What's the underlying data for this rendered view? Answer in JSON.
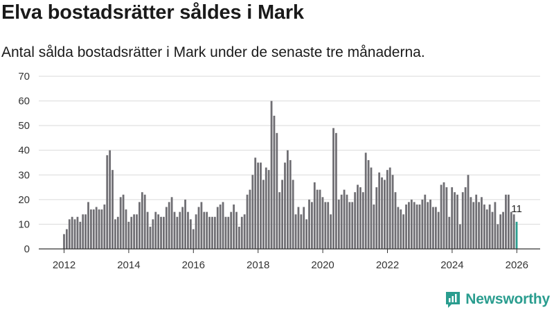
{
  "chart_data": {
    "type": "bar",
    "title": "Elva bostadsrätter såldes i Mark",
    "subtitle": "Antal sålda bostadsrätter i Mark under de senaste tre månaderna.",
    "xlabel": "",
    "ylabel": "",
    "ylim": [
      0,
      70
    ],
    "y_ticks": [
      0,
      10,
      20,
      30,
      40,
      50,
      60,
      70
    ],
    "x_ticks": [
      2012,
      2014,
      2016,
      2018,
      2020,
      2022,
      2024,
      2026
    ],
    "x_start": 2012.0,
    "x_step": 0.0833,
    "gridlines": true,
    "values": [
      6,
      8,
      12,
      13,
      12,
      13,
      11,
      14,
      14,
      19,
      16,
      16,
      17,
      16,
      16,
      18,
      38,
      40,
      32,
      12,
      13,
      21,
      22,
      16,
      11,
      13,
      14,
      14,
      19,
      23,
      22,
      15,
      9,
      12,
      15,
      14,
      13,
      13,
      17,
      19,
      21,
      15,
      13,
      15,
      17,
      20,
      15,
      12,
      8,
      14,
      17,
      19,
      15,
      15,
      13,
      13,
      13,
      17,
      18,
      19,
      13,
      13,
      15,
      18,
      15,
      9,
      13,
      14,
      22,
      24,
      30,
      37,
      35,
      35,
      28,
      33,
      32,
      60,
      54,
      47,
      23,
      28,
      35,
      40,
      36,
      28,
      14,
      17,
      14,
      17,
      12,
      20,
      19,
      27,
      24,
      24,
      21,
      19,
      19,
      14,
      49,
      47,
      20,
      22,
      24,
      22,
      19,
      19,
      23,
      26,
      25,
      23,
      39,
      36,
      33,
      18,
      25,
      31,
      29,
      28,
      32,
      33,
      30,
      23,
      17,
      16,
      14,
      18,
      19,
      20,
      19,
      18,
      18,
      20,
      22,
      19,
      20,
      17,
      17,
      15,
      26,
      27,
      25,
      13,
      25,
      23,
      22,
      10,
      23,
      25,
      30,
      21,
      19,
      22,
      19,
      21,
      18,
      16,
      18,
      15,
      19,
      10,
      14,
      15,
      22,
      22,
      15,
      14,
      11
    ],
    "highlight_last": true,
    "last_value_label": "11",
    "bar_color": "#6f6e73",
    "highlight_color": "#2a9d8f"
  },
  "branding": {
    "logo_text": "Newsworthy",
    "accent": "#2a9d8f"
  }
}
